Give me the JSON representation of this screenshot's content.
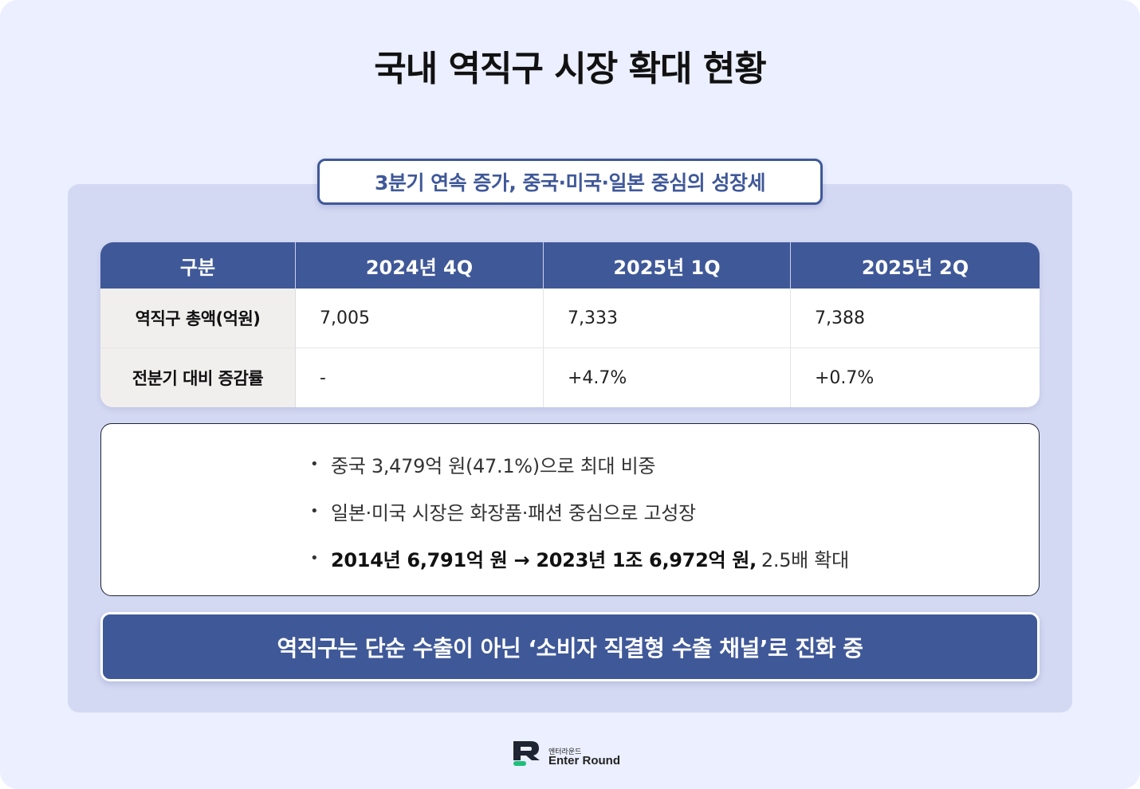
{
  "title": "국내 역직구 시장 확대 현황",
  "subtitle": "3분기 연속 증가, 중국·미국·일본 중심의 성장세",
  "table": {
    "headers": [
      "구분",
      "2024년 4Q",
      "2025년 1Q",
      "2025년 2Q"
    ],
    "rows": [
      {
        "label": "역직구 총액(억원)",
        "values": [
          "7,005",
          "7,333",
          "7,388"
        ]
      },
      {
        "label": "전분기 대비 증감률",
        "values": [
          "-",
          "+4.7%",
          "+0.7%"
        ]
      }
    ]
  },
  "bullets": {
    "items": [
      {
        "text": "중국 3,479억 원(47.1%)으로 최대 비중"
      },
      {
        "text": "일본·미국 시장은 화장품·패션 중심으로 고성장"
      },
      {
        "strong": "2014년 6,791억 원 → 2023년 1조 6,972억 원,",
        "text": "2.5배 확대"
      }
    ],
    "marker": "•"
  },
  "banner": "역직구는 단순 수출이 아닌 ‘소비자 직결형 수출 채널’로 진화 중",
  "logo": {
    "small": "엔터라운드",
    "name": "Enter Round",
    "icon": "enter-round-logo-icon",
    "mark_color": "#1f2433",
    "accent_color": "#1fbf7a"
  },
  "colors": {
    "background": "#ebefff",
    "panel": "#d4d9f3",
    "primary": "#3f5898",
    "label_cell": "#f1eeee"
  }
}
